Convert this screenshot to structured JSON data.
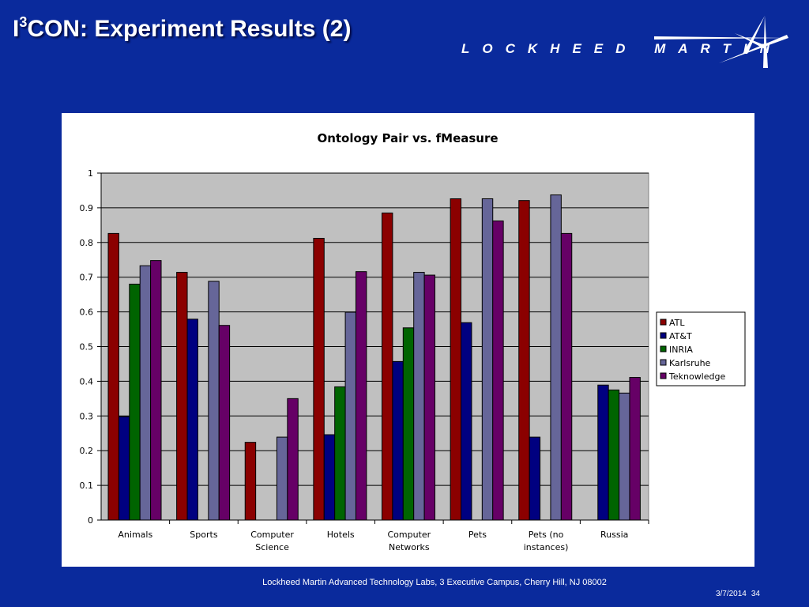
{
  "slide": {
    "title_prefix": "I",
    "title_sup": "3",
    "title_rest": "CON: Experiment Results (2)",
    "footer": "Lockheed Martin Advanced Technology Labs, 3 Executive Campus, Cherry Hill, NJ 08002",
    "date": "3/7/2014",
    "page": "34"
  },
  "logo": {
    "text": "LOCKHEED MARTIN"
  },
  "colors": {
    "background": "#0a2a9c",
    "plot_area": "#c0c0c0"
  },
  "chart_data": {
    "type": "bar",
    "title": "Ontology Pair vs. fMeasure",
    "xlabel": "",
    "ylabel": "",
    "ylim": [
      0,
      1
    ],
    "yticks": [
      "0",
      "0.1",
      "0.2",
      "0.3",
      "0.4",
      "0.5",
      "0.6",
      "0.7",
      "0.8",
      "0.9",
      "1"
    ],
    "grid": true,
    "legend_position": "right",
    "categories": [
      [
        "Animals"
      ],
      [
        "Sports"
      ],
      [
        "Computer",
        "Science"
      ],
      [
        "Hotels"
      ],
      [
        "Computer",
        "Networks"
      ],
      [
        "Pets"
      ],
      [
        "Pets (no",
        "instances)"
      ],
      [
        "Russia"
      ]
    ],
    "series": [
      {
        "name": "ATL",
        "color": "#8b0000",
        "values": [
          0.826,
          0.714,
          0.224,
          0.812,
          0.885,
          0.926,
          0.921,
          null
        ]
      },
      {
        "name": "AT&T",
        "color": "#000080",
        "values": [
          0.298,
          0.579,
          null,
          0.246,
          0.457,
          0.569,
          0.239,
          0.389
        ]
      },
      {
        "name": "INRIA",
        "color": "#006400",
        "values": [
          0.68,
          null,
          null,
          0.384,
          0.554,
          null,
          null,
          0.375
        ]
      },
      {
        "name": "Karlsruhe",
        "color": "#666699",
        "values": [
          0.733,
          0.688,
          0.239,
          0.599,
          0.714,
          0.926,
          0.937,
          0.366
        ]
      },
      {
        "name": "Teknowledge",
        "color": "#660066",
        "values": [
          0.748,
          0.561,
          0.35,
          0.716,
          0.706,
          0.862,
          0.826,
          0.411
        ]
      }
    ]
  }
}
